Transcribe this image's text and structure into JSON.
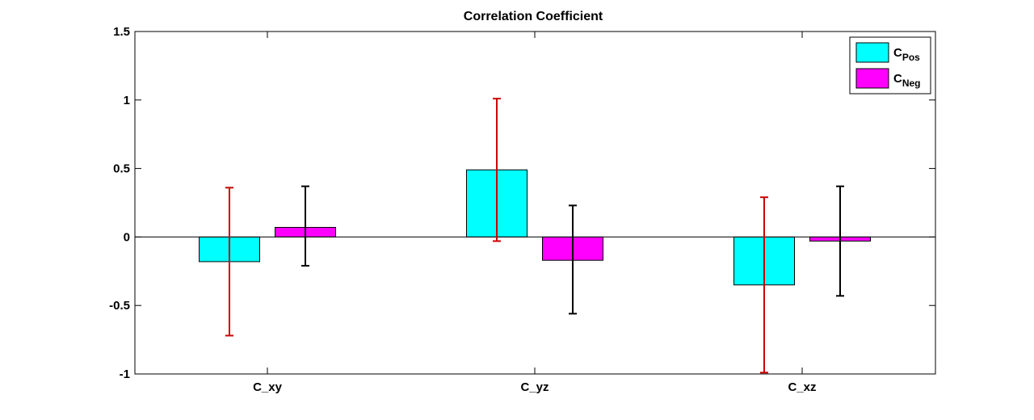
{
  "chart_data": {
    "type": "bar",
    "title": "Correlation Coefficient",
    "xlabel": "",
    "ylabel": "",
    "categories": [
      "C_xy",
      "C_yz",
      "C_xz"
    ],
    "ylim": [
      -1,
      1.5
    ],
    "yticks": [
      -1,
      -0.5,
      0,
      0.5,
      1,
      1.5
    ],
    "ytick_labels": [
      "-1",
      "-0.5",
      "0",
      "0.5",
      "1",
      "1.5"
    ],
    "grid": false,
    "legend_position": "top-right",
    "series": [
      {
        "name_base": "C",
        "name_sub": "Pos",
        "color": "#00ffff",
        "error_color": "#cc0000",
        "values": [
          -0.18,
          0.49,
          -0.35
        ],
        "error_low": [
          -0.72,
          -0.03,
          -0.99
        ],
        "error_high": [
          0.36,
          1.01,
          0.29
        ]
      },
      {
        "name_base": "C",
        "name_sub": "Neg",
        "color": "#ff00ff",
        "error_color": "#000000",
        "values": [
          0.07,
          -0.17,
          -0.03
        ],
        "error_low": [
          -0.21,
          -0.56,
          -0.43
        ],
        "error_high": [
          0.37,
          0.23,
          0.37
        ]
      }
    ]
  }
}
